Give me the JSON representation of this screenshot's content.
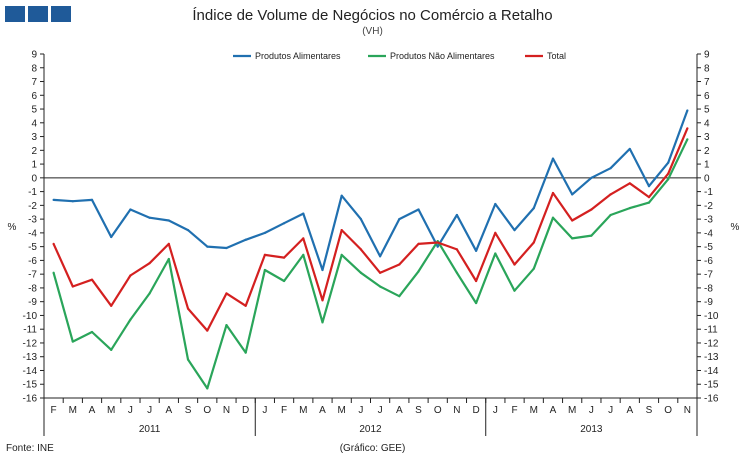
{
  "header": {
    "title": "Índice de Volume de Negócios no Comércio a Retalho",
    "subtitle": "(VH)"
  },
  "footer": {
    "source": "Fonte: INE",
    "credit": "(Gráfico: GEE)"
  },
  "colors": {
    "logo": "#1f5a99",
    "alimentares": "#2070b0",
    "nao_alimentares": "#2aa55a",
    "total": "#d42020"
  },
  "chart_data": {
    "type": "line",
    "title": "Índice de Volume de Negócios no Comércio a Retalho",
    "subtitle": "(VH)",
    "ylabel_left": "%",
    "ylabel_right": "%",
    "ylim": [
      -16,
      9
    ],
    "yticks": [
      9,
      8,
      7,
      6,
      5,
      4,
      3,
      2,
      1,
      0,
      -1,
      -2,
      -3,
      -4,
      -5,
      -6,
      -7,
      -8,
      -9,
      -10,
      -11,
      -12,
      -13,
      -14,
      -15,
      -16
    ],
    "legend_position": "top-center",
    "categories": [
      "F",
      "M",
      "A",
      "M",
      "J",
      "J",
      "A",
      "S",
      "O",
      "N",
      "D",
      "J",
      "F",
      "M",
      "A",
      "M",
      "J",
      "J",
      "A",
      "S",
      "O",
      "N",
      "D",
      "J",
      "F",
      "M",
      "A",
      "M",
      "J",
      "J",
      "A",
      "S",
      "O",
      "N"
    ],
    "years": [
      {
        "label": "2011",
        "start": 0,
        "end": 10
      },
      {
        "label": "2012",
        "start": 11,
        "end": 22
      },
      {
        "label": "2013",
        "start": 23,
        "end": 33
      }
    ],
    "series": [
      {
        "name": "Produtos Alimentares",
        "color_key": "alimentares",
        "values": [
          -1.6,
          -1.7,
          -1.6,
          -4.3,
          -2.3,
          -2.9,
          -3.1,
          -3.8,
          -5.0,
          -5.1,
          -4.5,
          -4.0,
          -3.3,
          -2.6,
          -6.7,
          -1.3,
          -3.0,
          -5.7,
          -3.0,
          -2.3,
          -5.0,
          -2.7,
          -5.3,
          -1.9,
          -3.8,
          -2.2,
          1.4,
          -1.2,
          0.0,
          0.7,
          2.1,
          -0.6,
          1.1,
          4.9
        ]
      },
      {
        "name": "Produtos Não Alimentares",
        "color_key": "nao_alimentares",
        "values": [
          -6.9,
          -11.9,
          -11.2,
          -12.5,
          -10.3,
          -8.4,
          -5.9,
          -13.2,
          -15.3,
          -10.7,
          -12.7,
          -6.7,
          -7.5,
          -5.6,
          -10.5,
          -5.6,
          -6.9,
          -7.9,
          -8.6,
          -6.8,
          -4.6,
          -6.9,
          -9.1,
          -5.5,
          -8.2,
          -6.6,
          -2.9,
          -4.4,
          -4.2,
          -2.7,
          -2.2,
          -1.8,
          -0.1,
          2.8
        ]
      },
      {
        "name": "Total",
        "color_key": "total",
        "values": [
          -4.8,
          -7.9,
          -7.4,
          -9.3,
          -7.1,
          -6.2,
          -4.8,
          -9.5,
          -11.1,
          -8.4,
          -9.3,
          -5.6,
          -5.8,
          -4.4,
          -8.9,
          -3.8,
          -5.2,
          -6.9,
          -6.3,
          -4.8,
          -4.7,
          -5.2,
          -7.5,
          -4.0,
          -6.3,
          -4.7,
          -1.1,
          -3.1,
          -2.3,
          -1.2,
          -0.4,
          -1.4,
          0.3,
          3.6
        ]
      }
    ]
  }
}
